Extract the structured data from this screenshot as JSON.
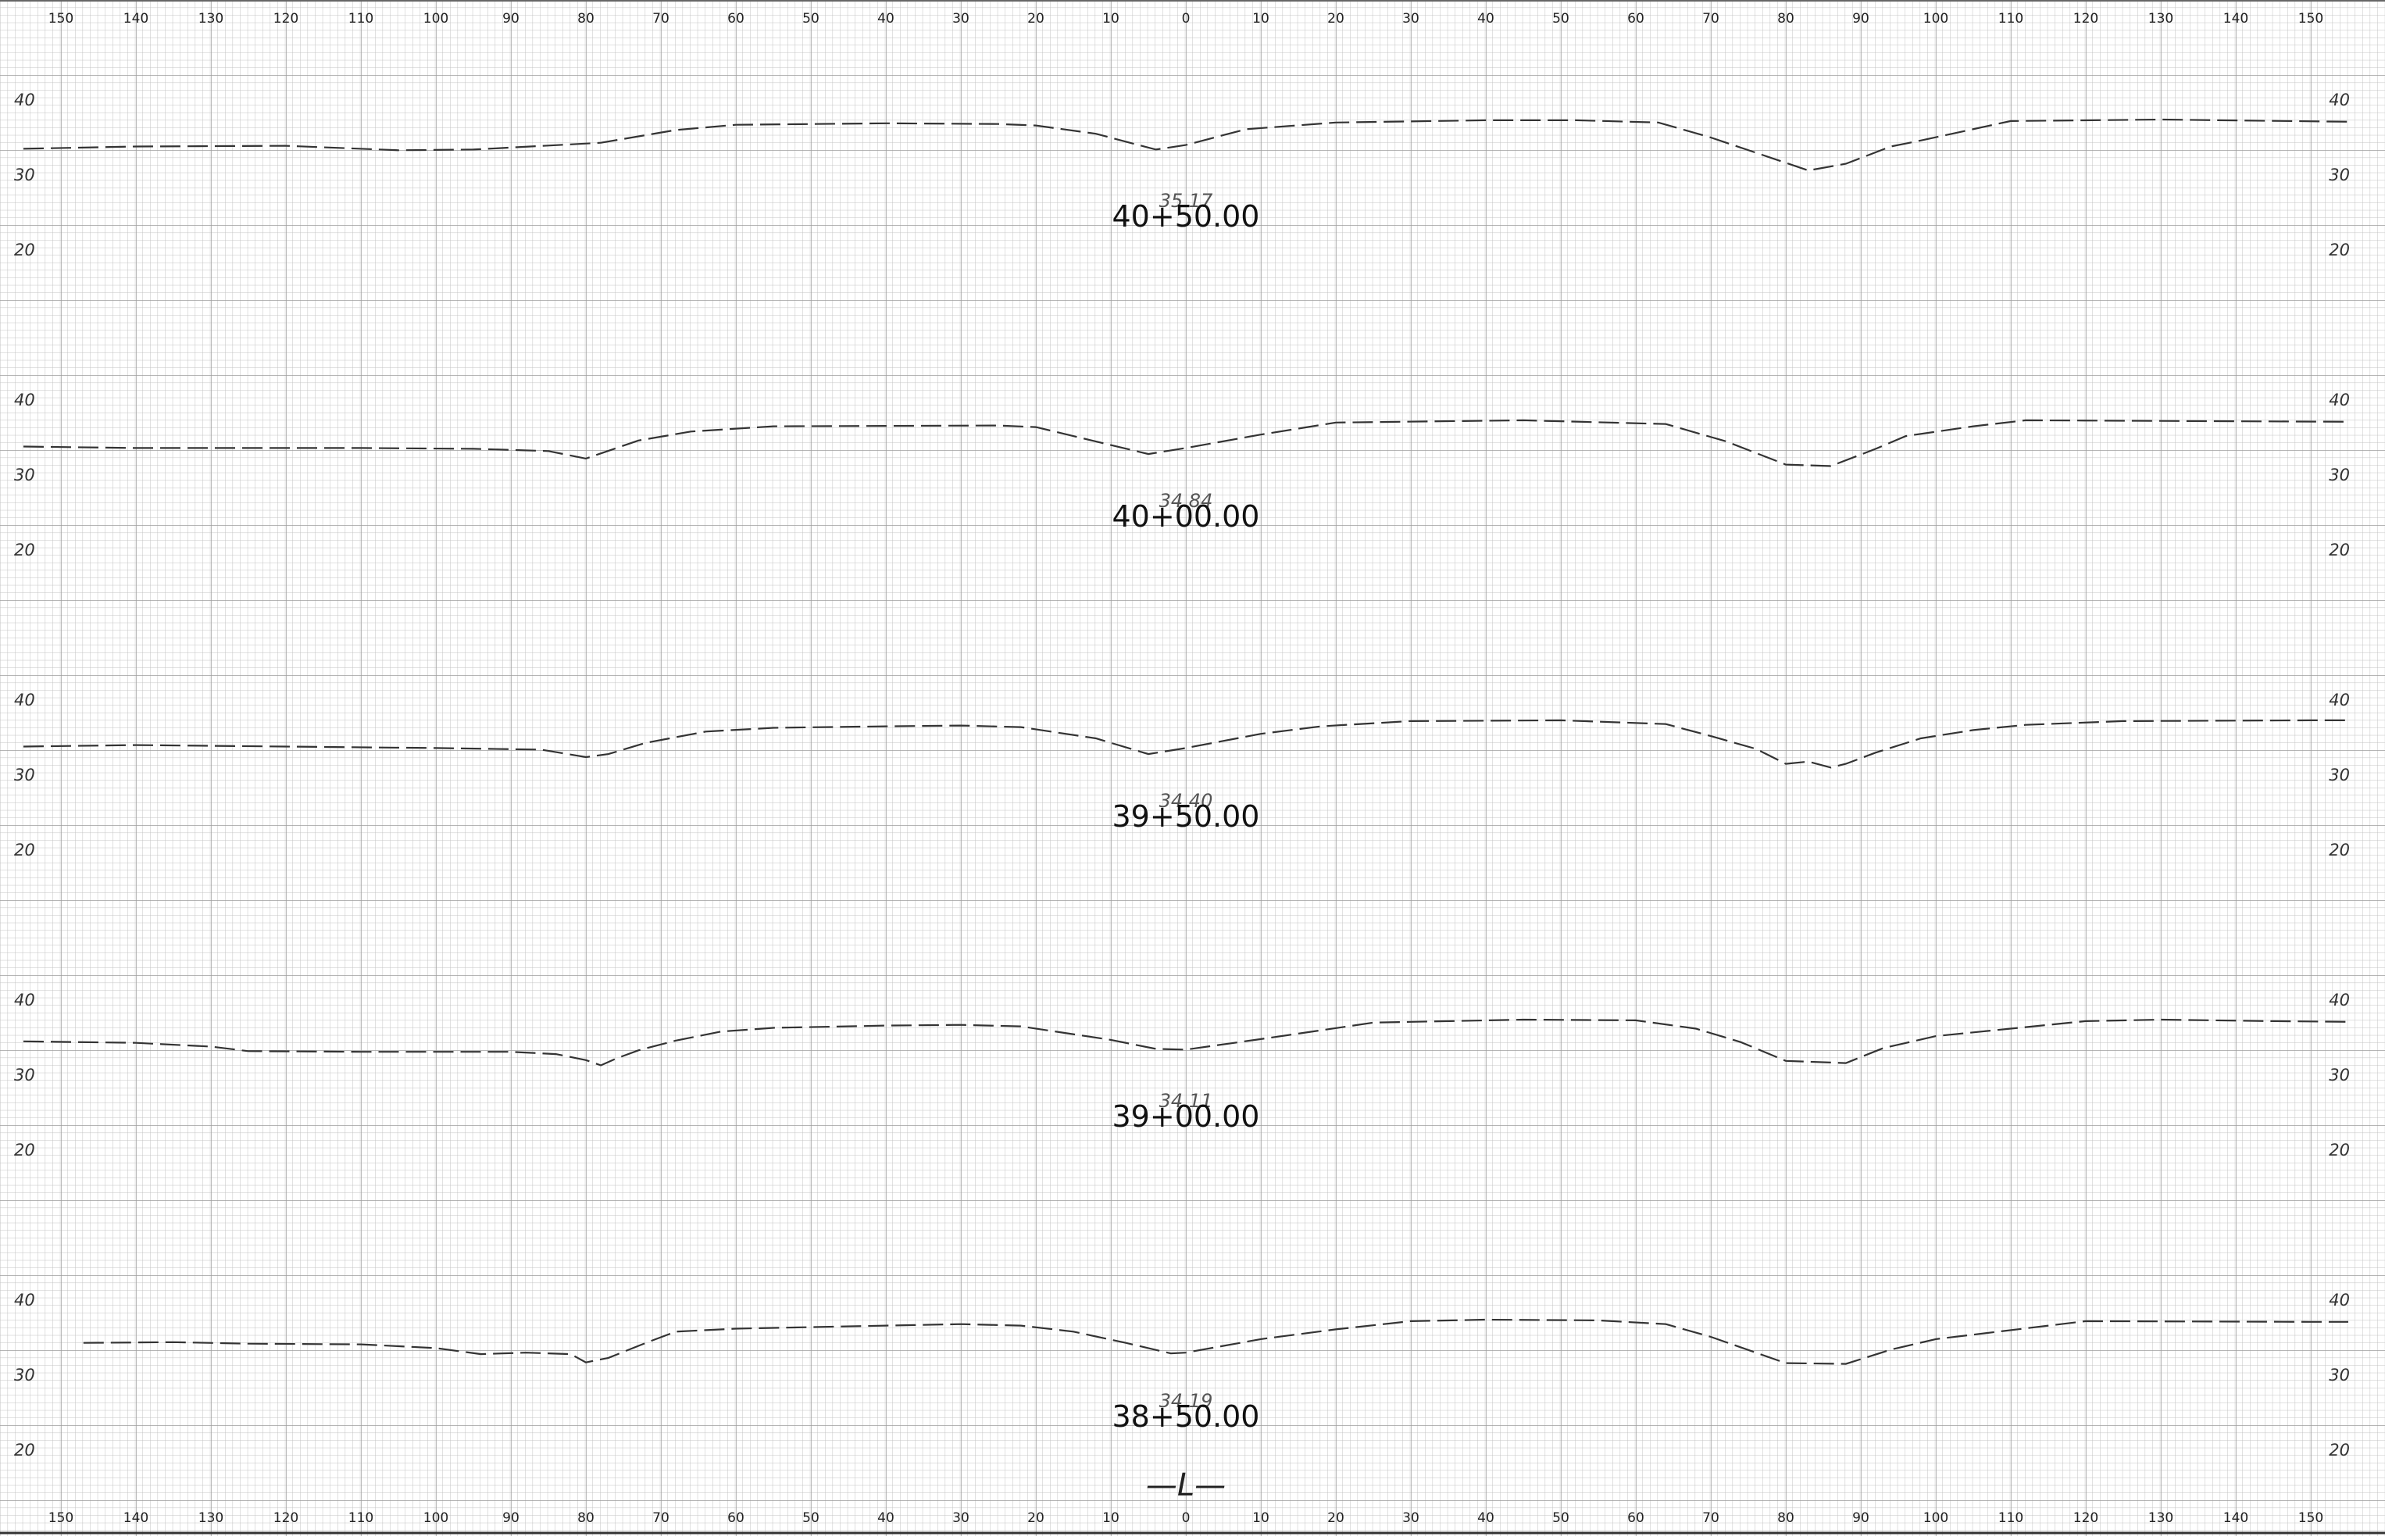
{
  "offset_labels": [
    "150",
    "140",
    "130",
    "120",
    "110",
    "100",
    "90",
    "80",
    "70",
    "60",
    "50",
    "40",
    "30",
    "20",
    "10",
    "0",
    "10",
    "20",
    "30",
    "40",
    "50",
    "60",
    "70",
    "80",
    "90",
    "100",
    "110",
    "120",
    "130",
    "140",
    "150"
  ],
  "centerline_label": "—L—",
  "elevation_scale": {
    "unit": "ft",
    "labels": [
      "40",
      "30",
      "20"
    ]
  },
  "horizontal_scale": {
    "min": -157,
    "max": 160,
    "unit": "ft"
  },
  "stations": [
    {
      "station": "40+50.00",
      "centerline_elevation": "35.17",
      "ground_profile": [
        [
          -155,
          33.5
        ],
        [
          -140,
          33.8
        ],
        [
          -120,
          33.9
        ],
        [
          -105,
          33.3
        ],
        [
          -95,
          33.4
        ],
        [
          -78,
          34.3
        ],
        [
          -68,
          36
        ],
        [
          -60,
          36.7
        ],
        [
          -40,
          36.9
        ],
        [
          -25,
          36.8
        ],
        [
          -20,
          36.6
        ],
        [
          -12,
          35.5
        ],
        [
          -4,
          33.4
        ],
        [
          0,
          34
        ],
        [
          8,
          36.1
        ],
        [
          20,
          37
        ],
        [
          40,
          37.3
        ],
        [
          52,
          37.3
        ],
        [
          63,
          37
        ],
        [
          70,
          35
        ],
        [
          78,
          32.3
        ],
        [
          83,
          30.6
        ],
        [
          88,
          31.5
        ],
        [
          94,
          33.8
        ],
        [
          98,
          34.6
        ],
        [
          110,
          37.2
        ],
        [
          130,
          37.4
        ],
        [
          155,
          37.1
        ]
      ]
    },
    {
      "station": "40+00.00",
      "centerline_elevation": "34.84",
      "ground_profile": [
        [
          -155,
          33.8
        ],
        [
          -140,
          33.6
        ],
        [
          -110,
          33.6
        ],
        [
          -95,
          33.5
        ],
        [
          -85,
          33.2
        ],
        [
          -80,
          32.2
        ],
        [
          -73,
          34.6
        ],
        [
          -66,
          35.8
        ],
        [
          -55,
          36.5
        ],
        [
          -25,
          36.6
        ],
        [
          -20,
          36.4
        ],
        [
          -5,
          32.8
        ],
        [
          0,
          33.6
        ],
        [
          10,
          35.4
        ],
        [
          20,
          37
        ],
        [
          45,
          37.3
        ],
        [
          64,
          36.8
        ],
        [
          72,
          34.5
        ],
        [
          80,
          31.4
        ],
        [
          86,
          31.2
        ],
        [
          92,
          33.5
        ],
        [
          96,
          35.2
        ],
        [
          105,
          36.5
        ],
        [
          112,
          37.3
        ],
        [
          155,
          37.1
        ]
      ]
    },
    {
      "station": "39+50.00",
      "centerline_elevation": "34.40",
      "ground_profile": [
        [
          -155,
          33.8
        ],
        [
          -140,
          34
        ],
        [
          -120,
          33.8
        ],
        [
          -100,
          33.6
        ],
        [
          -86,
          33.4
        ],
        [
          -80,
          32.4
        ],
        [
          -77,
          32.8
        ],
        [
          -72,
          34.3
        ],
        [
          -64,
          35.8
        ],
        [
          -55,
          36.3
        ],
        [
          -40,
          36.5
        ],
        [
          -30,
          36.6
        ],
        [
          -22,
          36.4
        ],
        [
          -12,
          34.9
        ],
        [
          -5,
          32.8
        ],
        [
          0,
          33.6
        ],
        [
          10,
          35.5
        ],
        [
          18,
          36.5
        ],
        [
          30,
          37.2
        ],
        [
          50,
          37.3
        ],
        [
          64,
          36.8
        ],
        [
          70,
          35.2
        ],
        [
          76,
          33.5
        ],
        [
          80,
          31.5
        ],
        [
          83,
          31.8
        ],
        [
          86,
          31
        ],
        [
          88,
          31.5
        ],
        [
          92,
          33
        ],
        [
          98,
          34.9
        ],
        [
          105,
          36
        ],
        [
          112,
          36.7
        ],
        [
          125,
          37.2
        ],
        [
          150,
          37.3
        ],
        [
          155,
          37.3
        ]
      ]
    },
    {
      "station": "39+00.00",
      "centerline_elevation": "34.11",
      "ground_profile": [
        [
          -155,
          34.5
        ],
        [
          -140,
          34.3
        ],
        [
          -130,
          33.8
        ],
        [
          -125,
          33.2
        ],
        [
          -110,
          33.1
        ],
        [
          -90,
          33.1
        ],
        [
          -84,
          32.8
        ],
        [
          -80,
          32
        ],
        [
          -78,
          31.3
        ],
        [
          -76,
          32.2
        ],
        [
          -73,
          33.3
        ],
        [
          -68,
          34.6
        ],
        [
          -62,
          35.8
        ],
        [
          -55,
          36.3
        ],
        [
          -40,
          36.6
        ],
        [
          -30,
          36.7
        ],
        [
          -22,
          36.5
        ],
        [
          -10,
          34.7
        ],
        [
          -4,
          33.5
        ],
        [
          0,
          33.4
        ],
        [
          10,
          34.8
        ],
        [
          25,
          37
        ],
        [
          45,
          37.4
        ],
        [
          60,
          37.3
        ],
        [
          68,
          36.2
        ],
        [
          74,
          34.4
        ],
        [
          80,
          31.9
        ],
        [
          88,
          31.6
        ],
        [
          93,
          33.6
        ],
        [
          100,
          35.2
        ],
        [
          110,
          36.2
        ],
        [
          120,
          37.2
        ],
        [
          130,
          37.4
        ],
        [
          145,
          37.2
        ],
        [
          155,
          37.1
        ]
      ]
    },
    {
      "station": "38+50.00",
      "centerline_elevation": "34.19",
      "ground_profile": [
        [
          -147,
          34.3
        ],
        [
          -135,
          34.4
        ],
        [
          -125,
          34.2
        ],
        [
          -110,
          34.1
        ],
        [
          -100,
          33.6
        ],
        [
          -94,
          32.8
        ],
        [
          -88,
          33
        ],
        [
          -82,
          32.8
        ],
        [
          -80,
          31.7
        ],
        [
          -77,
          32.3
        ],
        [
          -72,
          34.3
        ],
        [
          -68,
          35.8
        ],
        [
          -60,
          36.2
        ],
        [
          -40,
          36.6
        ],
        [
          -30,
          36.8
        ],
        [
          -22,
          36.6
        ],
        [
          -15,
          35.8
        ],
        [
          -8,
          34.3
        ],
        [
          -2,
          32.9
        ],
        [
          0,
          33
        ],
        [
          10,
          34.8
        ],
        [
          20,
          36.1
        ],
        [
          30,
          37.2
        ],
        [
          40,
          37.4
        ],
        [
          55,
          37.3
        ],
        [
          64,
          36.8
        ],
        [
          70,
          35.1
        ],
        [
          76,
          33
        ],
        [
          80,
          31.6
        ],
        [
          88,
          31.5
        ],
        [
          94,
          33.4
        ],
        [
          100,
          34.8
        ],
        [
          120,
          37.2
        ],
        [
          150,
          37.1
        ],
        [
          155,
          37.1
        ]
      ]
    }
  ]
}
